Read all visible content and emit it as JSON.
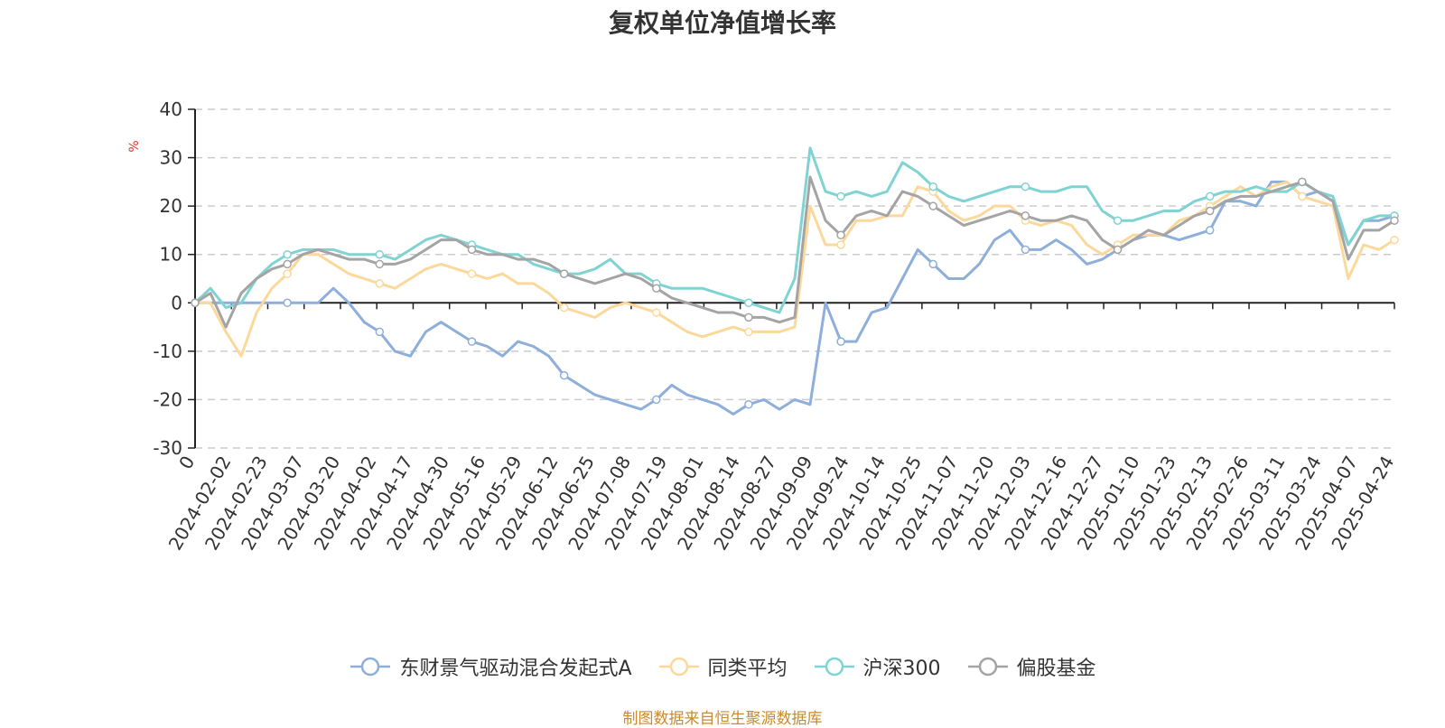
{
  "chart_data": {
    "type": "line",
    "title": "复权单位净值增长率",
    "ylabel": "%",
    "ylim": [
      -30,
      40
    ],
    "yticks": [
      40,
      30,
      20,
      10,
      0,
      -10,
      -20,
      -30
    ],
    "grid": true,
    "legend_position": "bottom",
    "x_labels": [
      "0",
      "2024-02-02",
      "2024-02-23",
      "2024-03-07",
      "2024-03-20",
      "2024-04-02",
      "2024-04-17",
      "2024-04-30",
      "2024-05-16",
      "2024-05-29",
      "2024-06-12",
      "2024-06-25",
      "2024-07-08",
      "2024-07-19",
      "2024-08-01",
      "2024-08-14",
      "2024-08-27",
      "2024-09-09",
      "2024-09-24",
      "2024-10-14",
      "2024-10-25",
      "2024-11-07",
      "2024-11-20",
      "2024-12-03",
      "2024-12-16",
      "2024-12-27",
      "2025-01-10",
      "2025-01-23",
      "2025-02-13",
      "2025-02-26",
      "2025-03-11",
      "2025-03-24",
      "2025-04-07",
      "2025-04-24"
    ],
    "series": [
      {
        "name": "东财景气驱动混合发起式A",
        "color": "#8eaedb",
        "values": [
          0,
          0,
          0,
          0,
          0,
          0,
          0,
          0,
          0,
          3,
          0,
          -4,
          -6,
          -10,
          -11,
          -6,
          -4,
          -6,
          -8,
          -9,
          -11,
          -8,
          -9,
          -11,
          -15,
          -17,
          -19,
          -20,
          -21,
          -22,
          -20,
          -17,
          -19,
          -20,
          -21,
          -23,
          -21,
          -20,
          -22,
          -20,
          -21,
          0,
          -8,
          -8,
          -2,
          -1,
          5,
          11,
          8,
          5,
          5,
          8,
          13,
          15,
          11,
          11,
          13,
          11,
          8,
          9,
          11,
          13,
          14,
          14,
          13,
          14,
          15,
          21,
          21,
          20,
          25,
          25,
          22,
          23,
          21,
          12,
          17,
          17,
          18
        ]
      },
      {
        "name": "同类平均",
        "color": "#fcd89a",
        "values": [
          0,
          0,
          -6,
          -11,
          -2,
          3,
          6,
          10,
          10,
          8,
          6,
          5,
          4,
          3,
          5,
          7,
          8,
          7,
          6,
          5,
          6,
          4,
          4,
          2,
          -1,
          -2,
          -3,
          -1,
          0,
          -1,
          -2,
          -4,
          -6,
          -7,
          -6,
          -5,
          -6,
          -6,
          -6,
          -5,
          20,
          12,
          12,
          17,
          17,
          18,
          18,
          24,
          23,
          19,
          17,
          18,
          20,
          20,
          17,
          16,
          17,
          16,
          12,
          10,
          12,
          14,
          14,
          14,
          17,
          18,
          20,
          22,
          24,
          22,
          24,
          25,
          22,
          21,
          20,
          5,
          12,
          11,
          13
        ]
      },
      {
        "name": "沪深300",
        "color": "#7fd3d2",
        "values": [
          0,
          3,
          -1,
          0,
          5,
          8,
          10,
          11,
          11,
          11,
          10,
          10,
          10,
          9,
          11,
          13,
          14,
          13,
          12,
          11,
          10,
          10,
          8,
          7,
          6,
          6,
          7,
          9,
          6,
          6,
          4,
          3,
          3,
          3,
          2,
          1,
          0,
          -1,
          -2,
          5,
          32,
          23,
          22,
          23,
          22,
          23,
          29,
          27,
          24,
          22,
          21,
          22,
          23,
          24,
          24,
          23,
          23,
          24,
          24,
          19,
          17,
          17,
          18,
          19,
          19,
          21,
          22,
          23,
          23,
          24,
          23,
          23,
          25,
          23,
          22,
          12,
          17,
          18,
          18
        ]
      },
      {
        "name": "偏股基金",
        "color": "#a4a4a4",
        "values": [
          0,
          2,
          -5,
          2,
          5,
          7,
          8,
          10,
          11,
          10,
          9,
          9,
          8,
          8,
          9,
          11,
          13,
          13,
          11,
          10,
          10,
          9,
          9,
          8,
          6,
          5,
          4,
          5,
          6,
          5,
          3,
          1,
          0,
          -1,
          -2,
          -2,
          -3,
          -3,
          -4,
          -3,
          26,
          17,
          14,
          18,
          19,
          18,
          23,
          22,
          20,
          18,
          16,
          17,
          18,
          19,
          18,
          17,
          17,
          18,
          17,
          13,
          11,
          13,
          15,
          14,
          16,
          18,
          19,
          21,
          22,
          22,
          23,
          24,
          25,
          23,
          21,
          9,
          15,
          15,
          17
        ]
      }
    ]
  },
  "source_text": "制图数据来自恒生聚源数据库"
}
